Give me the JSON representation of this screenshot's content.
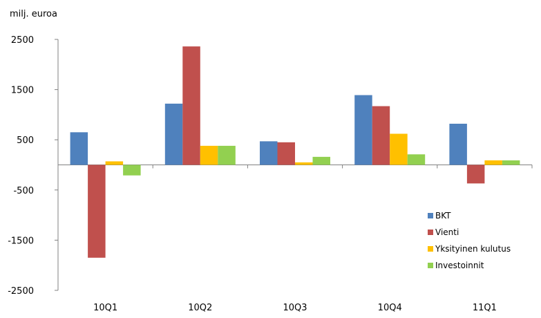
{
  "chart_data": {
    "type": "bar",
    "ylabel": "milj. euroa",
    "ylim": [
      -2500,
      2500
    ],
    "yticks": [
      2500,
      1500,
      500,
      -500,
      -1500,
      -2500
    ],
    "categories": [
      "10Q1",
      "10Q2",
      "10Q3",
      "10Q4",
      "11Q1"
    ],
    "series": [
      {
        "name": "BKT",
        "color": "#4F81BD",
        "values": [
          650,
          1220,
          470,
          1390,
          820
        ]
      },
      {
        "name": "Vienti",
        "color": "#C0504D",
        "values": [
          -1850,
          2360,
          450,
          1170,
          -370
        ]
      },
      {
        "name": "Yksityinen kulutus",
        "color": "#FFC000",
        "values": [
          70,
          380,
          50,
          620,
          90
        ]
      },
      {
        "name": "Investoinnit",
        "color": "#92D050",
        "values": [
          -210,
          380,
          160,
          210,
          90
        ]
      }
    ],
    "legend_position": "right",
    "grid": false
  }
}
